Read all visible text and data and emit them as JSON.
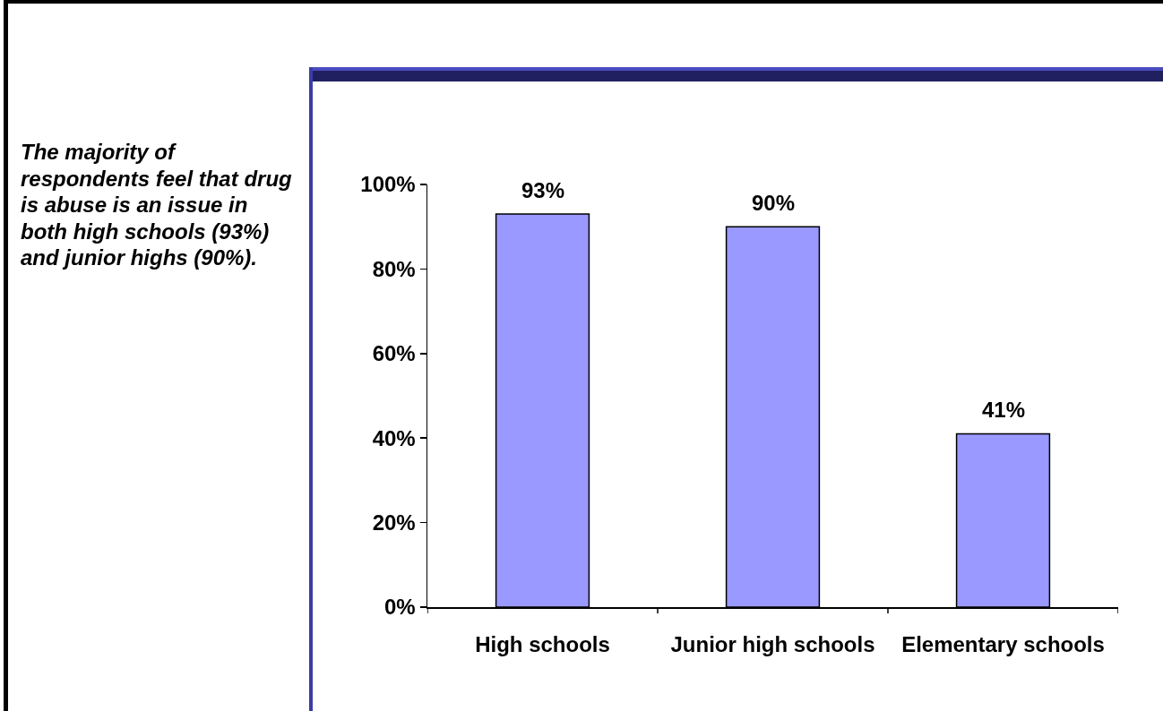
{
  "chart_data": {
    "type": "bar",
    "annotations": [
      "The majority of respondents feel that drug is abuse is an issue in both high schools (93%) and junior highs (90%)."
    ],
    "categories": [
      "High schools",
      "Junior high schools",
      "Elementary schools"
    ],
    "values": [
      93,
      90,
      41
    ],
    "value_labels": [
      "93%",
      "90%",
      "41%"
    ],
    "color": "#9999ff",
    "ylim": [
      0,
      100
    ],
    "yticks": [
      {
        "value": 0,
        "label": "0%"
      },
      {
        "value": 20,
        "label": "20%"
      },
      {
        "value": 40,
        "label": "40%"
      },
      {
        "value": 60,
        "label": "60%"
      },
      {
        "value": 80,
        "label": "80%"
      },
      {
        "value": 100,
        "label": "100%"
      }
    ]
  }
}
